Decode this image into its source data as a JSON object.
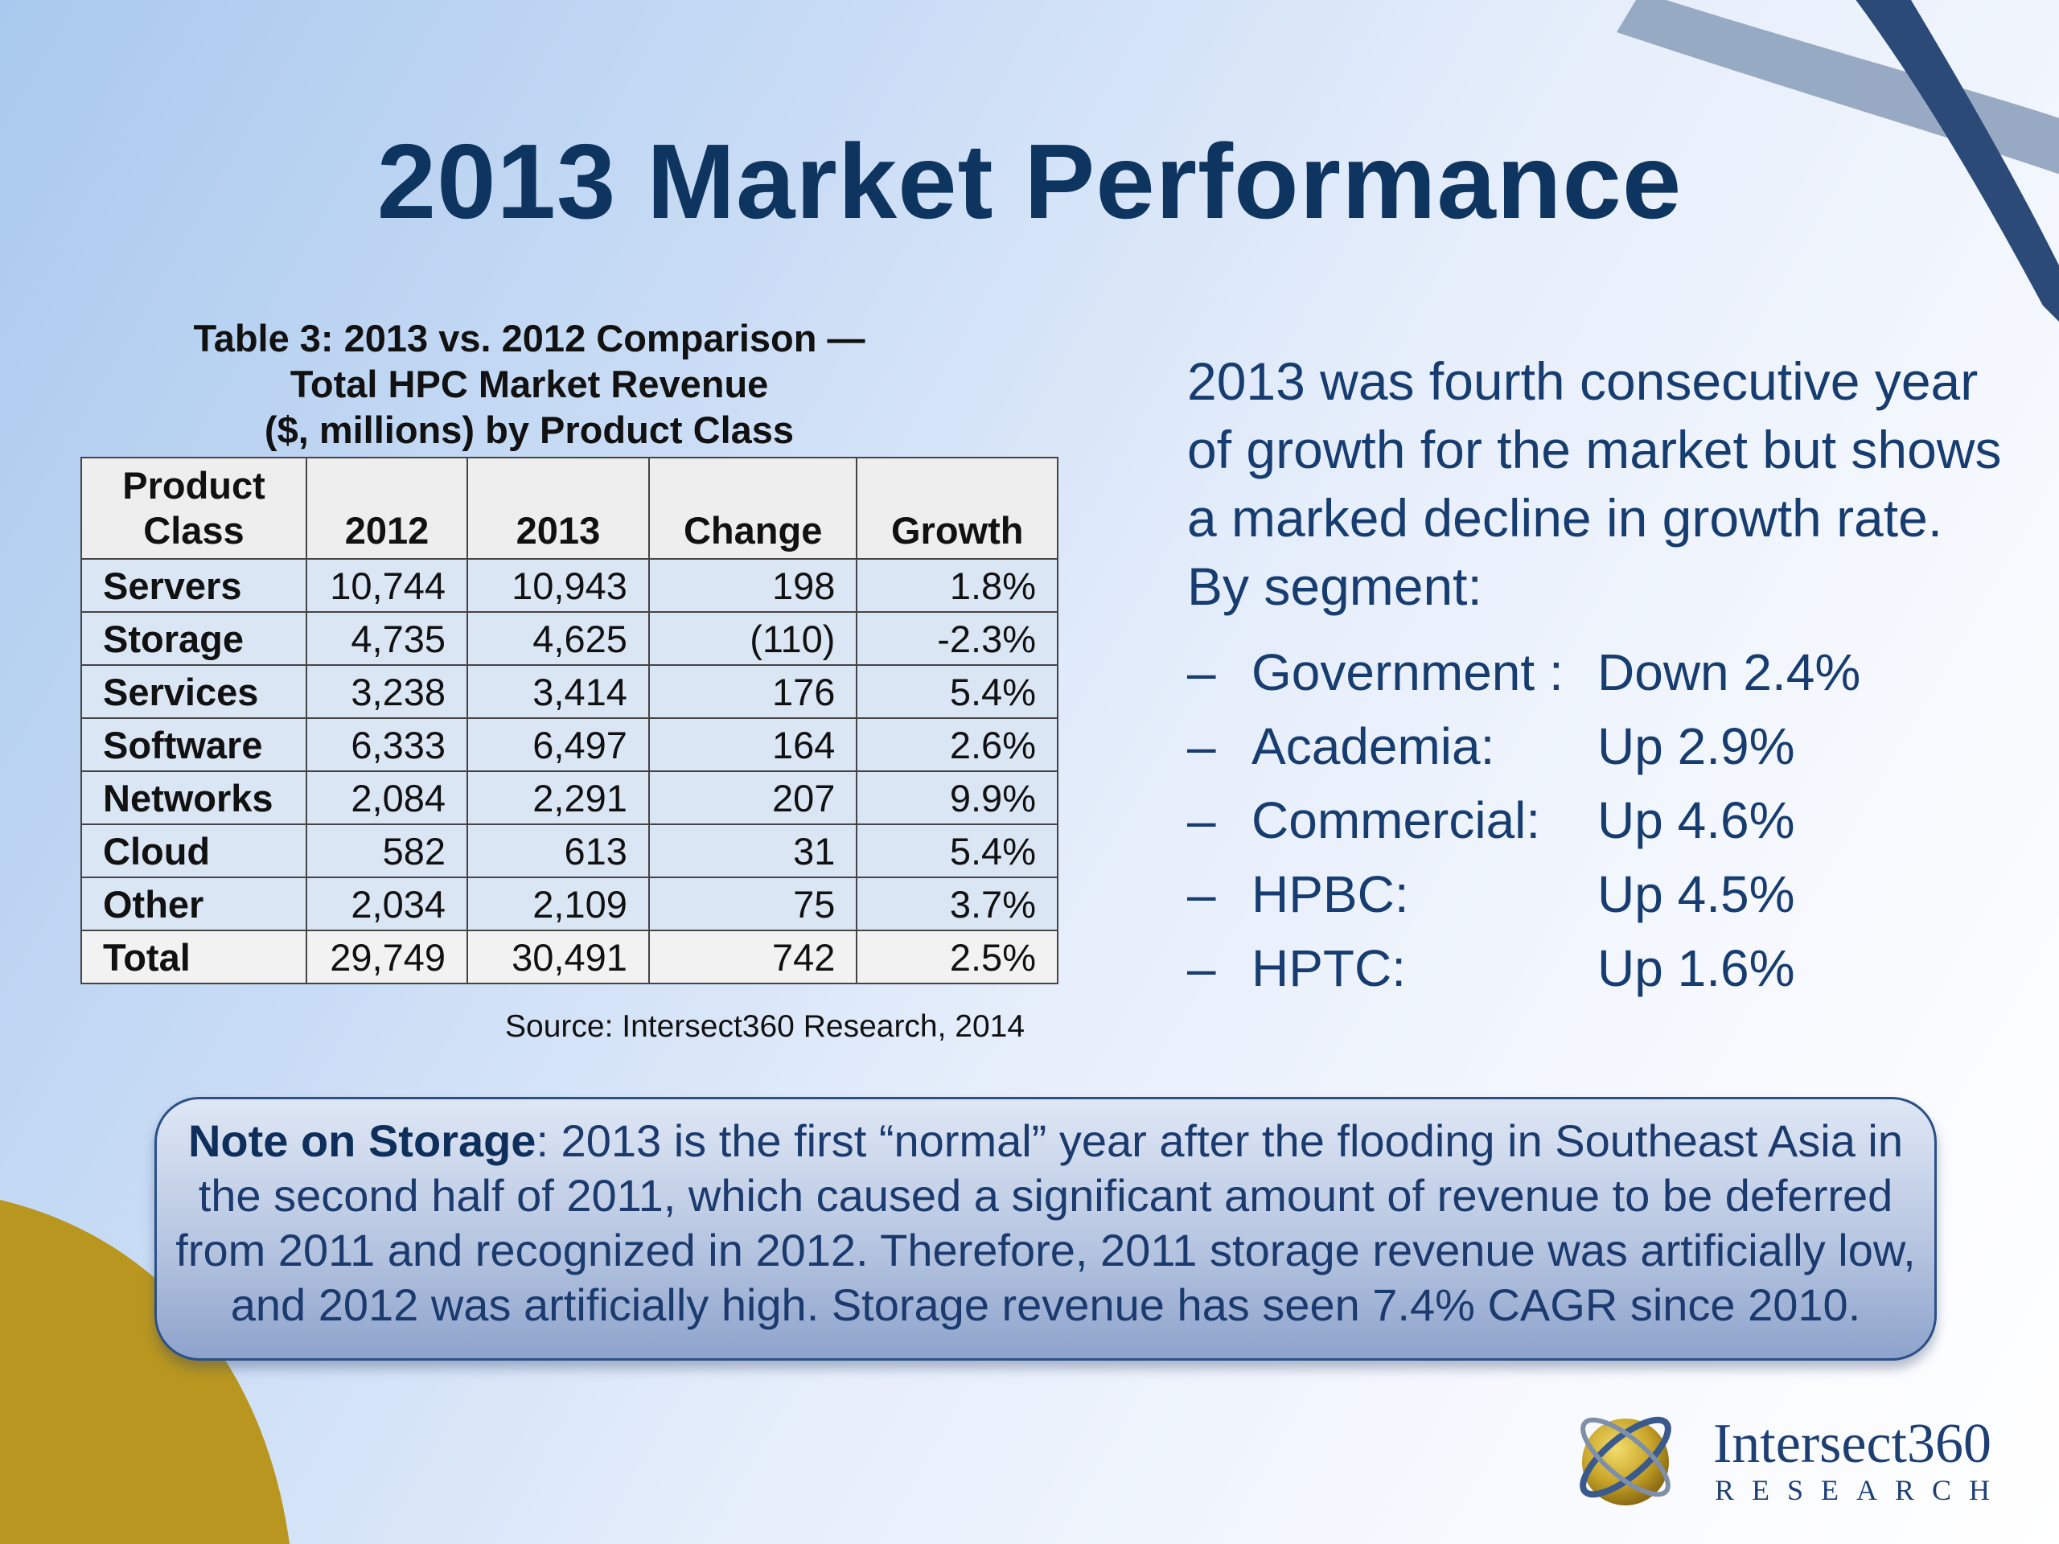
{
  "slide": {
    "title": "2013 Market Performance"
  },
  "table": {
    "caption_lines": [
      "Table 3: 2013 vs. 2012 Comparison —",
      "Total HPC Market Revenue",
      "($, millions) by Product Class"
    ],
    "headers": {
      "product_class_line1": "Product",
      "product_class_line2": "Class",
      "y2012": "2012",
      "y2013": "2013",
      "change": "Change",
      "growth": "Growth"
    },
    "rows": [
      {
        "label": "Servers",
        "v2012": "10,744",
        "v2013": "10,943",
        "change": "198",
        "growth": "1.8%"
      },
      {
        "label": "Storage",
        "v2012": "4,735",
        "v2013": "4,625",
        "change": "(110)",
        "growth": "-2.3%"
      },
      {
        "label": "Services",
        "v2012": "3,238",
        "v2013": "3,414",
        "change": "176",
        "growth": "5.4%"
      },
      {
        "label": "Software",
        "v2012": "6,333",
        "v2013": "6,497",
        "change": "164",
        "growth": "2.6%"
      },
      {
        "label": "Networks",
        "v2012": "2,084",
        "v2013": "2,291",
        "change": "207",
        "growth": "9.9%"
      },
      {
        "label": "Cloud",
        "v2012": "582",
        "v2013": "613",
        "change": "31",
        "growth": "5.4%"
      },
      {
        "label": "Other",
        "v2012": "2,034",
        "v2013": "2,109",
        "change": "75",
        "growth": "3.7%"
      }
    ],
    "total": {
      "label": "Total",
      "v2012": "29,749",
      "v2013": "30,491",
      "change": "742",
      "growth": "2.5%"
    },
    "source": "Source: Intersect360 Research, 2014"
  },
  "summary": {
    "text": "2013 was fourth consecutive year of growth for the market but shows a marked decline in growth rate. By segment:",
    "segments": [
      {
        "dash": "–",
        "name": "Government :",
        "value": "Down 2.4%"
      },
      {
        "dash": "–",
        "name": "Academia:",
        "value": "Up 2.9%"
      },
      {
        "dash": "–",
        "name": "Commercial:",
        "value": "Up 4.6%"
      },
      {
        "dash": "–",
        "name": "HPBC:",
        "value": "Up 4.5%"
      },
      {
        "dash": "–",
        "name": "HPTC:",
        "value": "Up 1.6%"
      }
    ]
  },
  "note": {
    "heading": "Note on Storage",
    "body": ": 2013 is the first “normal” year after the flooding in Southeast Asia in the second half of  2011, which caused a significant amount of revenue to be deferred from 2011 and recognized in 2012. Therefore, 2011 storage revenue was artificially low, and 2012 was artificially high. Storage revenue has seen 7.4% CAGR since 2010."
  },
  "logo": {
    "name": "Intersect360",
    "sub": "RESEARCH"
  },
  "colors": {
    "title": "#0e3560",
    "body_text": "#173d70",
    "gold": "#b8961f",
    "accent_blue": "#2c4f86"
  }
}
